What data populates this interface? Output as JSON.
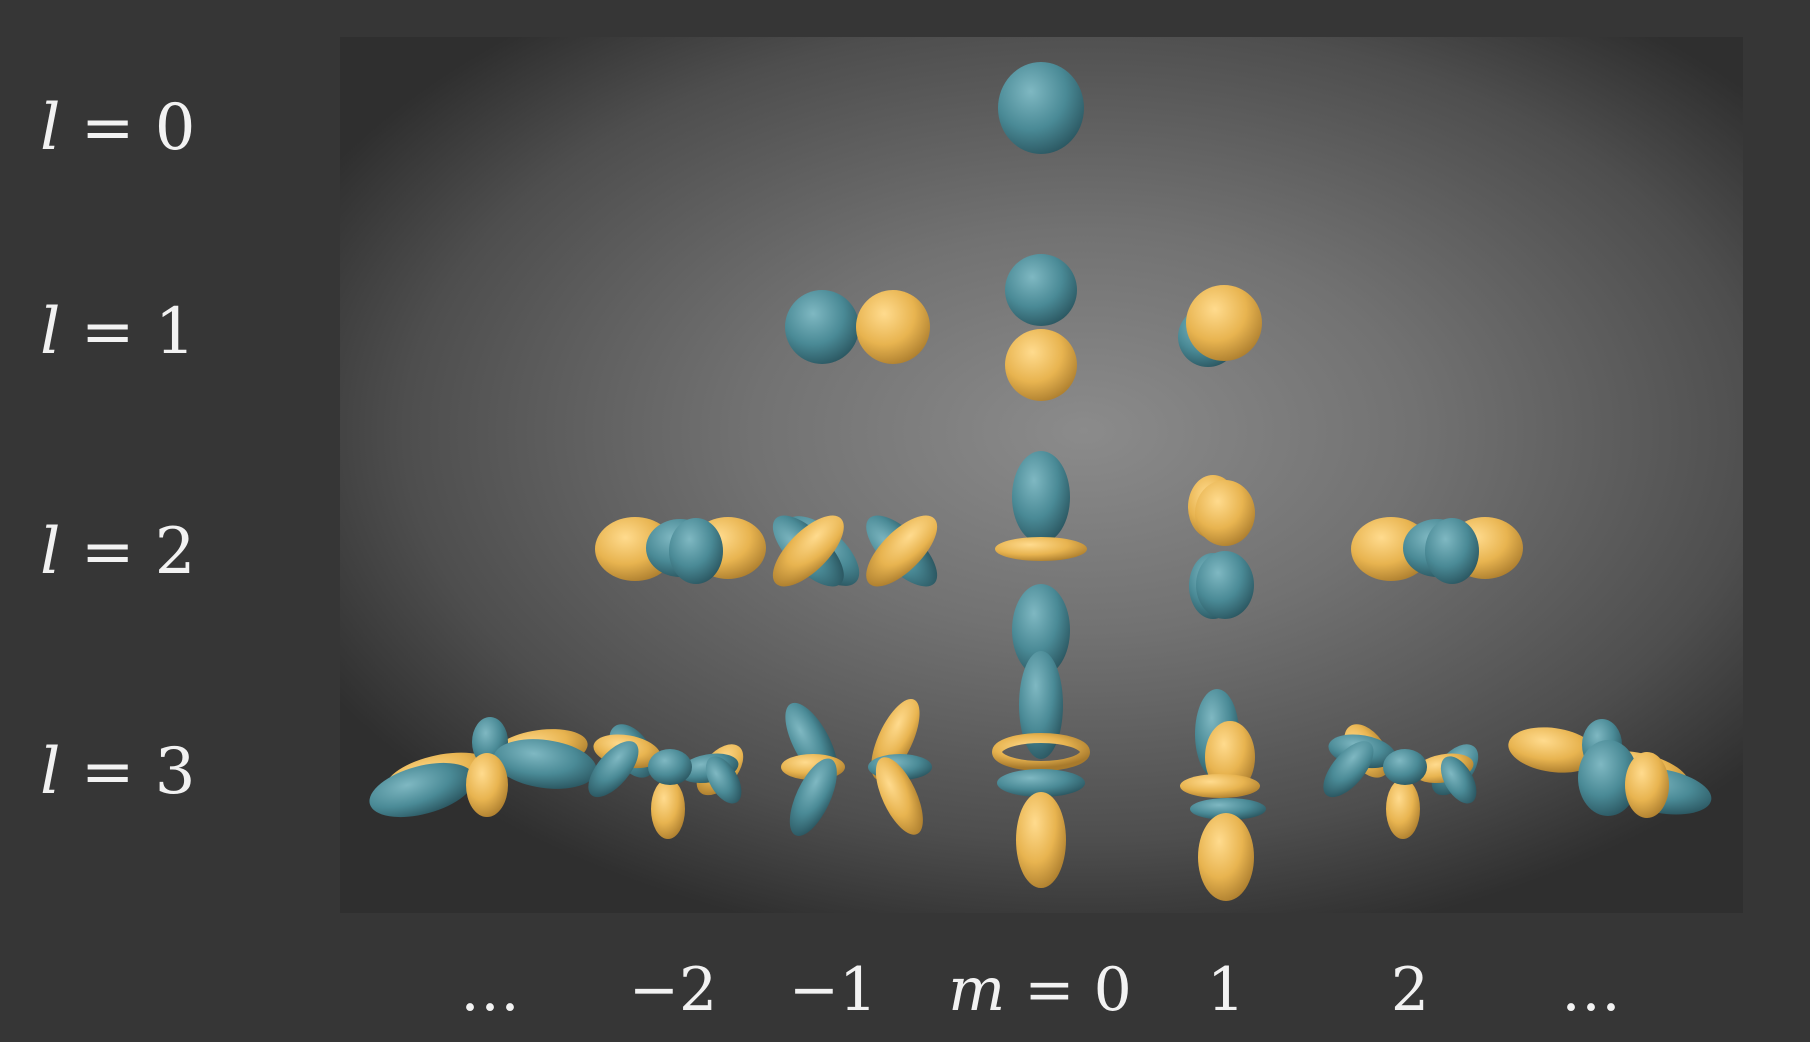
{
  "rows": [
    {
      "var": "l",
      "sym": "=",
      "val": "0"
    },
    {
      "var": "l",
      "sym": "=",
      "val": "1"
    },
    {
      "var": "l",
      "sym": "=",
      "val": "2"
    },
    {
      "var": "l",
      "sym": "=",
      "val": "3"
    }
  ],
  "columns": [
    {
      "text": "…"
    },
    {
      "text": "−2"
    },
    {
      "text": "−1"
    },
    {
      "var": "m",
      "text": " = 0"
    },
    {
      "text": "1"
    },
    {
      "text": "2"
    },
    {
      "text": "…"
    }
  ],
  "colors": {
    "teal": "#4a8a96",
    "gold": "#e8b450",
    "panel_center": "#8b8b8b",
    "background": "#363636"
  }
}
